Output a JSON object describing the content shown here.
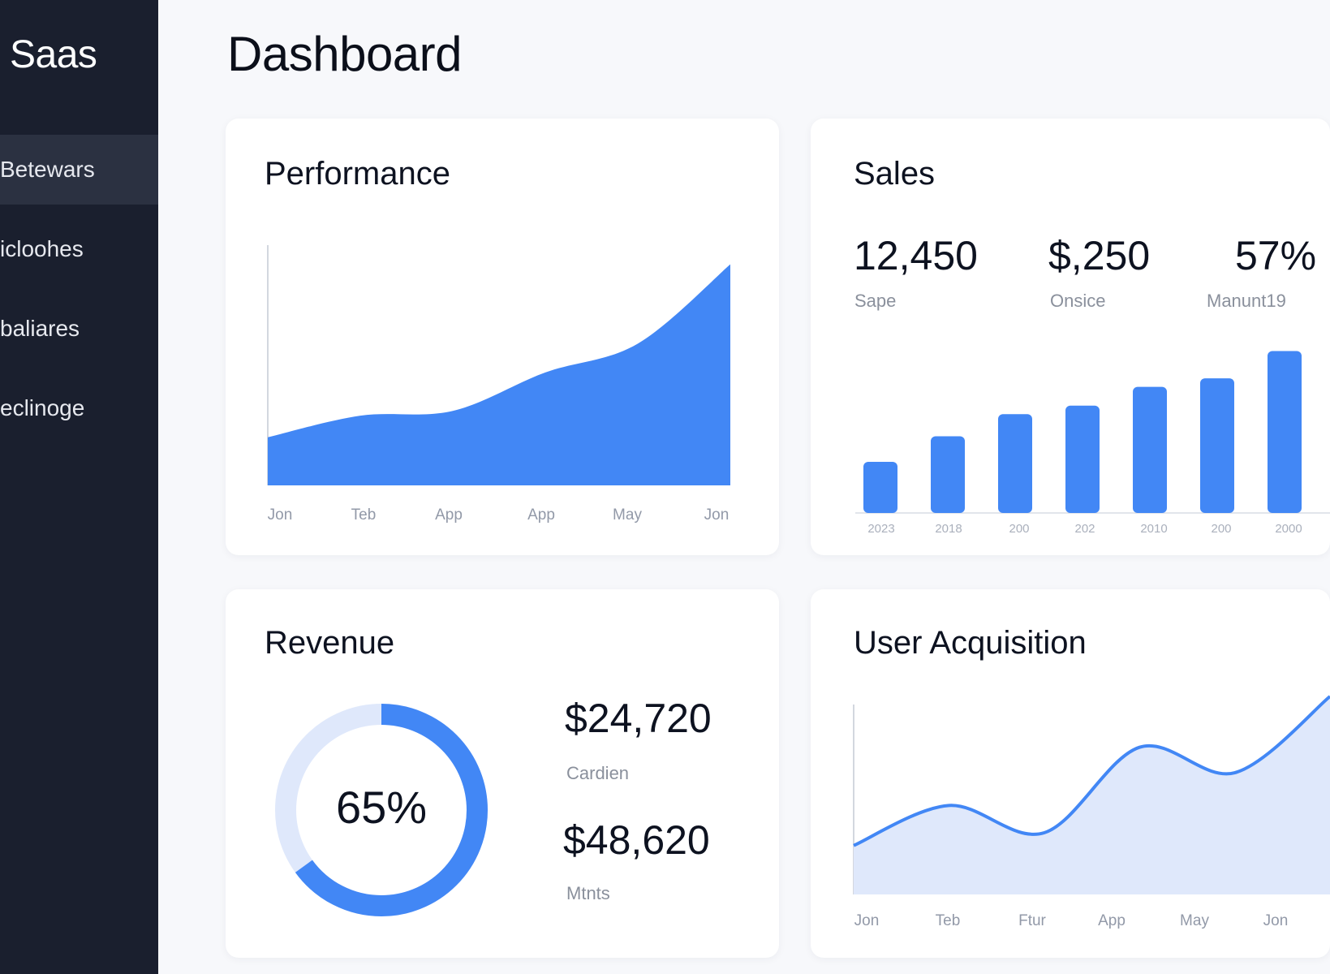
{
  "app": {
    "brand": "Saas"
  },
  "sidebar": {
    "items": [
      {
        "label": "Betewars",
        "active": true
      },
      {
        "label": "icloohes",
        "active": false
      },
      {
        "label": "baliares",
        "active": false
      },
      {
        "label": "eclinoge",
        "active": false
      }
    ]
  },
  "page": {
    "title": "Dashboard"
  },
  "performance": {
    "title": "Performance",
    "x_labels": [
      "Jon",
      "Teb",
      "App",
      "App",
      "May",
      "Jon"
    ]
  },
  "sales": {
    "title": "Sales",
    "stats": [
      {
        "value": "12,450",
        "label": "Sape"
      },
      {
        "value": "$,250",
        "label": "Onsice"
      },
      {
        "value": "57%",
        "label": "Manunt19"
      }
    ],
    "x_labels": [
      "2023",
      "2018",
      "200",
      "202",
      "2010",
      "200",
      "2000"
    ]
  },
  "revenue": {
    "title": "Revenue",
    "percent_label": "65%",
    "percent": 0.65,
    "values": [
      {
        "value": "$24,720",
        "label": "Cardien"
      },
      {
        "value": "$48,620",
        "label": "Mtnts"
      }
    ]
  },
  "acquisition": {
    "title": "User Acquisition",
    "x_labels": [
      "Jon",
      "Teb",
      "Ftur",
      "App",
      "May",
      "Jon"
    ]
  },
  "colors": {
    "accent": "#4287f5",
    "accent_light": "#dfe8fb",
    "sidebar_bg": "#1a1f2e",
    "sidebar_active": "#2b3141"
  },
  "chart_data": [
    {
      "type": "area",
      "title": "Performance",
      "categories": [
        "Jon",
        "Teb",
        "App",
        "App",
        "May",
        "Jon"
      ],
      "series": [
        {
          "values": [
            20,
            29,
            31,
            47,
            59,
            92
          ]
        }
      ],
      "grid": false
    },
    {
      "type": "bar",
      "title": "Sales",
      "categories": [
        "2023",
        "2018",
        "200",
        "202",
        "2010",
        "200",
        "2000"
      ],
      "series": [
        {
          "values": [
            30,
            45,
            58,
            63,
            74,
            79,
            95
          ]
        }
      ],
      "grid": false
    },
    {
      "type": "pie",
      "title": "Revenue",
      "values": [
        65,
        35
      ]
    },
    {
      "type": "area",
      "title": "User Acquisition",
      "categories": [
        "Jon",
        "Teb",
        "Ftur",
        "App",
        "May",
        "Jon"
      ],
      "series": [
        {
          "values": [
            18,
            40,
            25,
            72,
            58,
            100
          ]
        }
      ],
      "grid": false
    }
  ]
}
